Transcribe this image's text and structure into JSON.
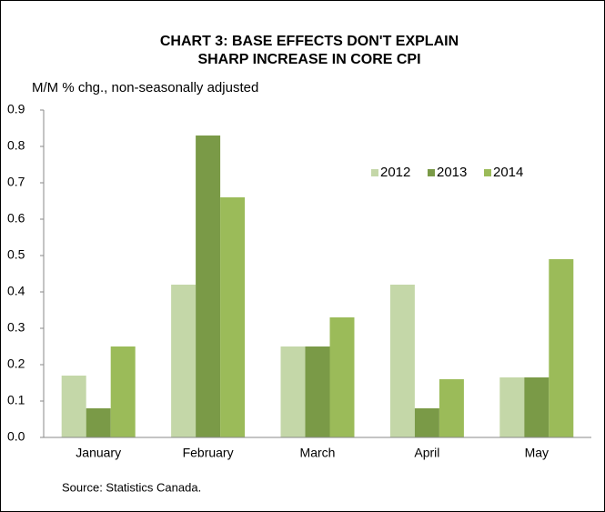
{
  "chart_data": {
    "type": "bar",
    "title": [
      "CHART 3: BASE EFFECTS DON'T EXPLAIN",
      "SHARP INCREASE IN CORE CPI"
    ],
    "y_label": "M/M % chg., non-seasonally adjusted",
    "source": "Source: Statistics Canada.",
    "categories": [
      "January",
      "February",
      "March",
      "April",
      "May"
    ],
    "series": [
      {
        "name": "2012",
        "color": "#c4d7a8",
        "values": [
          0.17,
          0.42,
          0.25,
          0.42,
          0.165
        ]
      },
      {
        "name": "2013",
        "color": "#7a9a47",
        "values": [
          0.08,
          0.83,
          0.25,
          0.08,
          0.165
        ]
      },
      {
        "name": "2014",
        "color": "#9bbb59",
        "values": [
          0.25,
          0.66,
          0.33,
          0.16,
          0.49
        ]
      }
    ],
    "ylim": [
      0,
      0.9
    ],
    "yticks": [
      {
        "value": 0,
        "label": "0.0"
      },
      0.1,
      0.2,
      0.3,
      0.4,
      0.5,
      0.6,
      0.7,
      0.8,
      0.9
    ],
    "grid": false,
    "legend": "upper-right"
  }
}
